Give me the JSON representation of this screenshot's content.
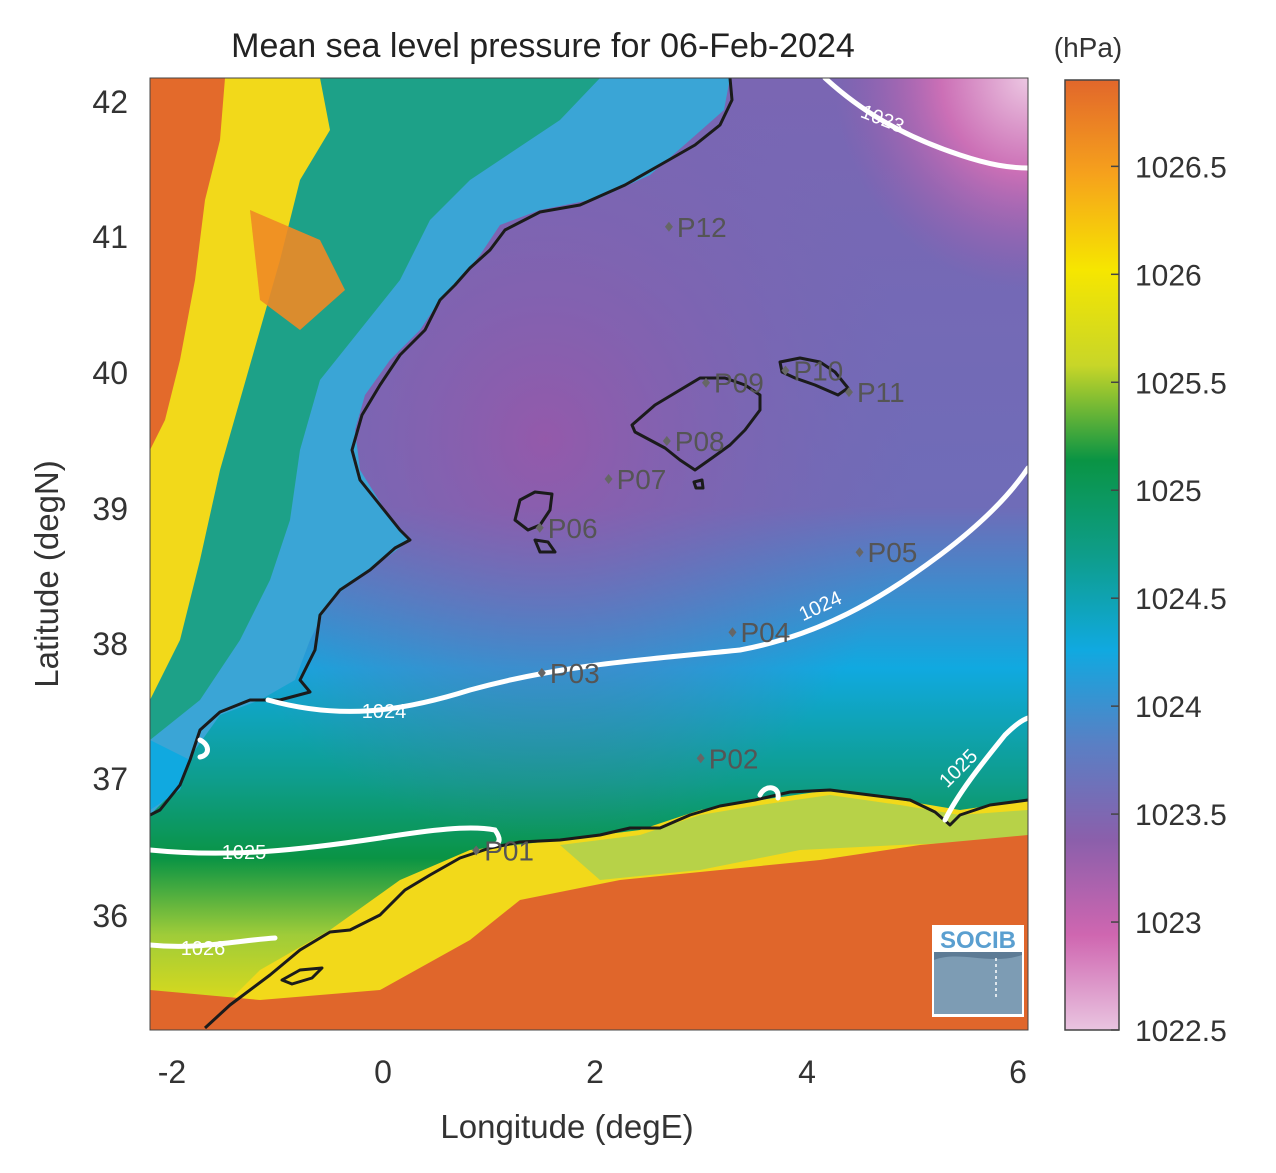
{
  "title": "Mean sea level pressure for 06-Feb-2024",
  "xlabel": "Longitude (degE)",
  "ylabel": "Latitude (degN)",
  "x_ticks": [
    "-2",
    "0",
    "2",
    "4",
    "6"
  ],
  "y_ticks": [
    "42",
    "41",
    "40",
    "39",
    "38",
    "37",
    "36"
  ],
  "colorbar": {
    "unit": "(hPa)",
    "ticks": [
      "1026.5",
      "1026",
      "1025.5",
      "1025",
      "1024.5",
      "1024",
      "1023.5",
      "1023",
      "1022.5"
    ],
    "range": [
      1022.5,
      1026.9
    ],
    "colors": [
      "#e9c4e0",
      "#cf66b0",
      "#8b5fab",
      "#5a7fc4",
      "#10a9e0",
      "#0e9d8a",
      "#0a9444",
      "#c8d628",
      "#f6e600",
      "#f6a21c",
      "#e2672b"
    ]
  },
  "contours": [
    {
      "label": "1023"
    },
    {
      "label": "1024"
    },
    {
      "label": "1024"
    },
    {
      "label": "1025"
    },
    {
      "label": "1025"
    },
    {
      "label": "1026"
    }
  ],
  "stations": [
    {
      "id": "P01",
      "lon": 0.88,
      "lat": 36.48
    },
    {
      "id": "P02",
      "lon": 3.0,
      "lat": 37.16
    },
    {
      "id": "P03",
      "lon": 1.5,
      "lat": 37.79
    },
    {
      "id": "P04",
      "lon": 3.3,
      "lat": 38.09
    },
    {
      "id": "P05",
      "lon": 4.5,
      "lat": 38.68
    },
    {
      "id": "P06",
      "lon": 1.48,
      "lat": 38.86
    },
    {
      "id": "P07",
      "lon": 2.13,
      "lat": 39.22
    },
    {
      "id": "P08",
      "lon": 2.68,
      "lat": 39.5
    },
    {
      "id": "P09",
      "lon": 3.05,
      "lat": 39.93
    },
    {
      "id": "P10",
      "lon": 3.8,
      "lat": 40.02
    },
    {
      "id": "P11",
      "lon": 4.4,
      "lat": 39.86
    },
    {
      "id": "P12",
      "lon": 2.7,
      "lat": 41.08
    }
  ],
  "logo": "SOCIB"
}
